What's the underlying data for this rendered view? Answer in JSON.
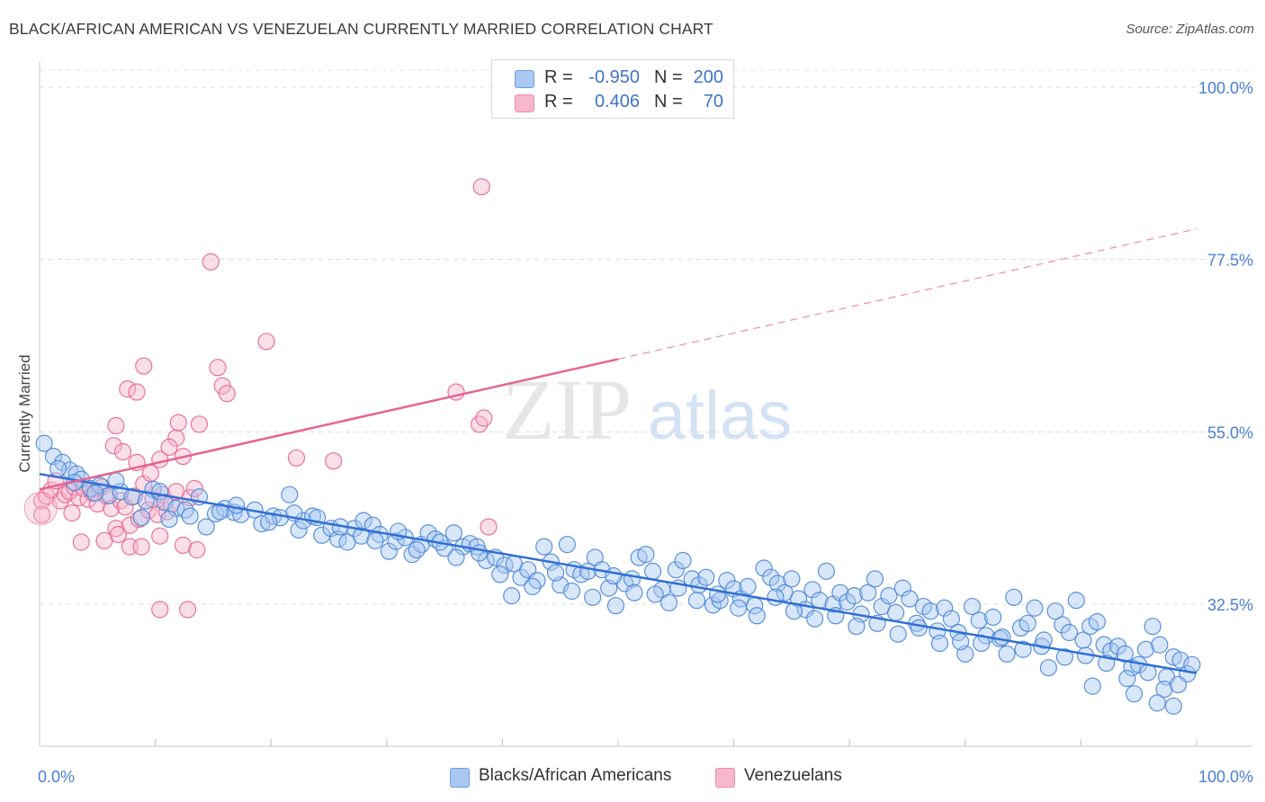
{
  "title": "BLACK/AFRICAN AMERICAN VS VENEZUELAN CURRENTLY MARRIED CORRELATION CHART",
  "source": "Source: ZipAtlas.com",
  "watermark": {
    "zip": "ZIP",
    "atlas": "atlas"
  },
  "legend": {
    "rows": [
      {
        "r_label": "R =",
        "r_value": "-0.950",
        "n_label": "N =",
        "n_value": "200",
        "color": "#a9c8f2"
      },
      {
        "r_label": "R =",
        "r_value": "0.406",
        "n_label": "N =",
        "n_value": "70",
        "color": "#f7b8cb"
      }
    ]
  },
  "bottom_legend": [
    {
      "label": "Blacks/African Americans",
      "color": "#a9c8f2"
    },
    {
      "label": "Venezuelans",
      "color": "#f7b8cb"
    }
  ],
  "chart_data": {
    "type": "scatter",
    "title": "BLACK/AFRICAN AMERICAN VS VENEZUELAN CURRENTLY MARRIED CORRELATION CHART",
    "xlabel": "",
    "ylabel": "Currently Married",
    "xlim": [
      0,
      100
    ],
    "ylim": [
      10,
      105
    ],
    "x_tick_labels": [
      "0.0%",
      "100.0%"
    ],
    "y_ticks": [
      32.5,
      55.0,
      77.5,
      100.0
    ],
    "y_tick_labels": [
      "32.5%",
      "55.0%",
      "77.5%",
      "100.0%"
    ],
    "grid": "horizontal dashed",
    "legend_position": "top-center",
    "colors": {
      "blue": "#4a86d8",
      "blue_fill": "#a9c8f2",
      "pink": "#e8638f",
      "pink_fill": "#f7b8cb",
      "tick": "#4a7fd4"
    },
    "series": [
      {
        "name": "Blacks/African Americans",
        "R": -0.95,
        "N": 200,
        "trend": {
          "x": [
            0,
            100
          ],
          "y": [
            49.5,
            23.5
          ],
          "dashed_beyond": null
        },
        "points": [
          [
            0.4,
            53.5
          ],
          [
            1.2,
            51.8
          ],
          [
            2.0,
            51.0
          ],
          [
            2.6,
            50.0
          ],
          [
            3.2,
            49.5
          ],
          [
            3.6,
            48.8
          ],
          [
            4.4,
            47.6
          ],
          [
            5.2,
            48.0
          ],
          [
            6.0,
            46.7
          ],
          [
            7.0,
            47.2
          ],
          [
            8.0,
            46.5
          ],
          [
            8.8,
            43.8
          ],
          [
            9.8,
            47.5
          ],
          [
            10.4,
            47.2
          ],
          [
            10.8,
            45.8
          ],
          [
            11.8,
            45.0
          ],
          [
            12.6,
            44.8
          ],
          [
            13.8,
            46.5
          ],
          [
            14.4,
            42.6
          ],
          [
            15.2,
            44.3
          ],
          [
            16.0,
            45.0
          ],
          [
            16.8,
            44.5
          ],
          [
            17.4,
            44.2
          ],
          [
            18.6,
            44.8
          ],
          [
            19.2,
            43.0
          ],
          [
            20.2,
            44.0
          ],
          [
            20.8,
            43.8
          ],
          [
            21.6,
            46.8
          ],
          [
            22.4,
            42.2
          ],
          [
            22.8,
            43.4
          ],
          [
            23.6,
            44.0
          ],
          [
            24.4,
            41.5
          ],
          [
            25.2,
            42.4
          ],
          [
            25.8,
            41.0
          ],
          [
            26.6,
            40.6
          ],
          [
            27.2,
            42.4
          ],
          [
            28.0,
            43.4
          ],
          [
            28.8,
            42.8
          ],
          [
            29.4,
            41.6
          ],
          [
            30.2,
            39.4
          ],
          [
            30.8,
            40.7
          ],
          [
            31.6,
            41.2
          ],
          [
            32.2,
            39.0
          ],
          [
            33.0,
            40.3
          ],
          [
            33.6,
            41.8
          ],
          [
            34.2,
            41.0
          ],
          [
            35.0,
            39.8
          ],
          [
            35.8,
            41.8
          ],
          [
            36.6,
            40.0
          ],
          [
            37.2,
            40.4
          ],
          [
            37.8,
            40.0
          ],
          [
            38.6,
            38.2
          ],
          [
            39.4,
            38.6
          ],
          [
            40.2,
            37.6
          ],
          [
            40.8,
            33.6
          ],
          [
            41.6,
            36.0
          ],
          [
            42.2,
            37.0
          ],
          [
            43.0,
            35.6
          ],
          [
            43.6,
            40.0
          ],
          [
            44.2,
            38.0
          ],
          [
            45.0,
            35.0
          ],
          [
            45.6,
            40.3
          ],
          [
            46.2,
            37.0
          ],
          [
            46.8,
            36.4
          ],
          [
            47.4,
            36.8
          ],
          [
            48.0,
            38.6
          ],
          [
            48.6,
            37.0
          ],
          [
            49.2,
            34.6
          ],
          [
            49.8,
            32.3
          ],
          [
            50.6,
            35.2
          ],
          [
            51.2,
            35.8
          ],
          [
            51.8,
            38.6
          ],
          [
            52.4,
            39.0
          ],
          [
            53.0,
            36.8
          ],
          [
            53.8,
            34.4
          ],
          [
            54.4,
            32.7
          ],
          [
            55.0,
            37.0
          ],
          [
            55.6,
            38.2
          ],
          [
            56.4,
            35.8
          ],
          [
            57.0,
            35.0
          ],
          [
            57.6,
            36.0
          ],
          [
            58.2,
            32.4
          ],
          [
            58.8,
            33.0
          ],
          [
            59.4,
            35.6
          ],
          [
            60.0,
            34.5
          ],
          [
            60.6,
            33.2
          ],
          [
            61.2,
            34.8
          ],
          [
            61.8,
            32.3
          ],
          [
            62.6,
            37.2
          ],
          [
            63.2,
            36.0
          ],
          [
            63.8,
            35.2
          ],
          [
            64.4,
            34.0
          ],
          [
            65.0,
            35.8
          ],
          [
            65.6,
            33.2
          ],
          [
            66.2,
            31.8
          ],
          [
            66.8,
            34.4
          ],
          [
            67.4,
            33.0
          ],
          [
            68.0,
            36.8
          ],
          [
            68.6,
            32.5
          ],
          [
            69.2,
            34.0
          ],
          [
            69.8,
            32.8
          ],
          [
            70.4,
            33.6
          ],
          [
            71.0,
            31.2
          ],
          [
            71.6,
            34.0
          ],
          [
            72.2,
            35.8
          ],
          [
            72.8,
            32.2
          ],
          [
            73.4,
            33.6
          ],
          [
            74.0,
            31.4
          ],
          [
            74.6,
            34.6
          ],
          [
            75.2,
            33.2
          ],
          [
            75.8,
            30.0
          ],
          [
            76.4,
            32.2
          ],
          [
            77.0,
            31.6
          ],
          [
            77.6,
            29.0
          ],
          [
            78.2,
            32.0
          ],
          [
            78.8,
            30.6
          ],
          [
            79.4,
            28.8
          ],
          [
            80.0,
            26.0
          ],
          [
            80.6,
            32.2
          ],
          [
            81.2,
            30.4
          ],
          [
            81.8,
            28.4
          ],
          [
            82.4,
            30.8
          ],
          [
            83.0,
            28.0
          ],
          [
            83.6,
            26.0
          ],
          [
            84.2,
            33.4
          ],
          [
            84.8,
            29.4
          ],
          [
            85.4,
            30.0
          ],
          [
            86.0,
            32.0
          ],
          [
            86.6,
            27.0
          ],
          [
            87.2,
            24.2
          ],
          [
            87.8,
            31.6
          ],
          [
            88.4,
            29.8
          ],
          [
            89.0,
            28.8
          ],
          [
            89.6,
            33.0
          ],
          [
            90.2,
            27.8
          ],
          [
            90.8,
            29.6
          ],
          [
            91.4,
            30.2
          ],
          [
            92.0,
            27.2
          ],
          [
            92.6,
            26.4
          ],
          [
            93.2,
            27.0
          ],
          [
            93.8,
            26.0
          ],
          [
            94.4,
            24.2
          ],
          [
            95.0,
            24.6
          ],
          [
            95.6,
            26.6
          ],
          [
            96.2,
            29.6
          ],
          [
            96.8,
            27.2
          ],
          [
            97.4,
            23.0
          ],
          [
            98.0,
            25.6
          ],
          [
            98.6,
            25.2
          ],
          [
            99.2,
            23.4
          ],
          [
            1.6,
            50.2
          ],
          [
            3.0,
            48.4
          ],
          [
            4.8,
            47.0
          ],
          [
            6.6,
            48.6
          ],
          [
            9.2,
            46.0
          ],
          [
            11.2,
            43.6
          ],
          [
            13.0,
            44.0
          ],
          [
            15.6,
            44.6
          ],
          [
            17.0,
            45.4
          ],
          [
            19.8,
            43.2
          ],
          [
            22.0,
            44.4
          ],
          [
            24.0,
            43.8
          ],
          [
            26.0,
            42.6
          ],
          [
            27.8,
            41.4
          ],
          [
            29.0,
            40.8
          ],
          [
            31.0,
            42.0
          ],
          [
            32.6,
            39.6
          ],
          [
            34.6,
            40.6
          ],
          [
            36.0,
            38.6
          ],
          [
            38.0,
            39.2
          ],
          [
            39.8,
            36.4
          ],
          [
            41.0,
            37.8
          ],
          [
            42.6,
            34.8
          ],
          [
            44.6,
            36.6
          ],
          [
            46.0,
            34.2
          ],
          [
            47.8,
            33.4
          ],
          [
            49.6,
            36.2
          ],
          [
            51.4,
            34.0
          ],
          [
            53.2,
            33.8
          ],
          [
            55.2,
            34.6
          ],
          [
            56.8,
            33.0
          ],
          [
            58.6,
            33.8
          ],
          [
            60.4,
            32.0
          ],
          [
            62.0,
            31.0
          ],
          [
            63.6,
            33.4
          ],
          [
            65.2,
            31.6
          ],
          [
            67.0,
            30.6
          ],
          [
            68.8,
            31.0
          ],
          [
            70.6,
            29.6
          ],
          [
            72.4,
            30.0
          ],
          [
            74.2,
            28.6
          ],
          [
            76.0,
            29.4
          ],
          [
            77.8,
            27.4
          ],
          [
            79.6,
            27.6
          ],
          [
            81.4,
            27.4
          ],
          [
            83.2,
            28.2
          ],
          [
            85.0,
            26.6
          ],
          [
            86.8,
            27.8
          ],
          [
            88.6,
            25.6
          ],
          [
            90.4,
            25.8
          ],
          [
            92.2,
            24.8
          ],
          [
            94.0,
            22.8
          ],
          [
            95.8,
            23.6
          ],
          [
            97.2,
            21.4
          ],
          [
            98.4,
            22.0
          ],
          [
            99.6,
            24.6
          ],
          [
            94.6,
            20.8
          ],
          [
            96.6,
            19.6
          ],
          [
            98.0,
            19.2
          ],
          [
            91.0,
            21.8
          ]
        ]
      },
      {
        "name": "Venezuelans",
        "R": 0.406,
        "N": 70,
        "trend": {
          "x": [
            0,
            50
          ],
          "y": [
            47.5,
            64.5
          ],
          "dashed_to": [
            100,
            81.5
          ]
        },
        "points": [
          [
            0.2,
            46.0
          ],
          [
            0.6,
            46.6
          ],
          [
            1.0,
            47.4
          ],
          [
            1.4,
            48.6
          ],
          [
            1.8,
            46.0
          ],
          [
            2.2,
            46.8
          ],
          [
            2.6,
            47.2
          ],
          [
            3.0,
            47.8
          ],
          [
            3.4,
            46.4
          ],
          [
            3.8,
            47.6
          ],
          [
            4.2,
            46.2
          ],
          [
            4.6,
            47.0
          ],
          [
            5.0,
            45.6
          ],
          [
            5.4,
            47.8
          ],
          [
            5.8,
            46.6
          ],
          [
            6.2,
            45.0
          ],
          [
            6.6,
            42.4
          ],
          [
            7.0,
            46.0
          ],
          [
            7.4,
            45.2
          ],
          [
            7.8,
            42.8
          ],
          [
            8.2,
            46.6
          ],
          [
            8.6,
            43.6
          ],
          [
            9.0,
            48.2
          ],
          [
            9.4,
            44.8
          ],
          [
            9.8,
            46.2
          ],
          [
            10.2,
            44.2
          ],
          [
            10.6,
            46.8
          ],
          [
            11.0,
            44.6
          ],
          [
            11.4,
            45.6
          ],
          [
            11.8,
            47.2
          ],
          [
            6.4,
            53.2
          ],
          [
            6.6,
            55.8
          ],
          [
            7.2,
            52.4
          ],
          [
            8.4,
            51.0
          ],
          [
            9.6,
            49.6
          ],
          [
            10.4,
            51.4
          ],
          [
            11.8,
            54.2
          ],
          [
            12.4,
            51.8
          ],
          [
            13.0,
            46.4
          ],
          [
            13.4,
            47.6
          ],
          [
            7.6,
            60.6
          ],
          [
            8.4,
            60.2
          ],
          [
            9.0,
            63.6
          ],
          [
            11.2,
            53.0
          ],
          [
            12.0,
            56.2
          ],
          [
            13.8,
            56.0
          ],
          [
            14.8,
            77.2
          ],
          [
            15.4,
            63.4
          ],
          [
            15.8,
            61.0
          ],
          [
            16.2,
            60.0
          ],
          [
            19.6,
            66.8
          ],
          [
            22.2,
            51.6
          ],
          [
            25.4,
            51.2
          ],
          [
            36.0,
            60.2
          ],
          [
            38.0,
            56.0
          ],
          [
            38.4,
            56.8
          ],
          [
            38.8,
            42.6
          ],
          [
            38.2,
            87.0
          ],
          [
            5.6,
            40.8
          ],
          [
            6.8,
            41.6
          ],
          [
            7.8,
            40.0
          ],
          [
            8.8,
            40.0
          ],
          [
            10.4,
            41.4
          ],
          [
            12.4,
            40.2
          ],
          [
            13.6,
            39.6
          ],
          [
            10.4,
            31.8
          ],
          [
            12.8,
            31.8
          ],
          [
            3.6,
            40.6
          ],
          [
            2.8,
            44.4
          ],
          [
            0.2,
            44.2
          ]
        ]
      }
    ]
  }
}
